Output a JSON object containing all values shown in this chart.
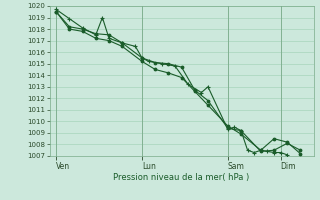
{
  "xlabel": "Pression niveau de la mer( hPa )",
  "ylim": [
    1007,
    1020
  ],
  "yticks": [
    1007,
    1008,
    1009,
    1010,
    1011,
    1012,
    1013,
    1014,
    1015,
    1016,
    1017,
    1018,
    1019,
    1020
  ],
  "xtick_labels": [
    "Ven",
    "Lun",
    "Sam",
    "Dim"
  ],
  "xtick_positions": [
    0,
    26,
    52,
    68
  ],
  "xlim": [
    -2,
    78
  ],
  "bg_color": "#cce8dc",
  "line_color": "#1a5c2a",
  "grid_color": "#9ecfb4",
  "series1_x": [
    0,
    4,
    8,
    12,
    14,
    16,
    20,
    24,
    26,
    28,
    32,
    36,
    40,
    44,
    46,
    52,
    54,
    56,
    58,
    60,
    62,
    64,
    66,
    68,
    70
  ],
  "series1_y": [
    1019.7,
    1018.9,
    1018.1,
    1017.5,
    1019.0,
    1017.2,
    1016.8,
    1016.5,
    1015.5,
    1015.2,
    1015.0,
    1014.8,
    1013.2,
    1012.5,
    1013.0,
    1009.3,
    1009.5,
    1009.2,
    1007.5,
    1007.3,
    1007.5,
    1007.4,
    1007.3,
    1007.3,
    1007.1
  ],
  "series2_x": [
    0,
    4,
    8,
    12,
    16,
    20,
    26,
    30,
    34,
    38,
    42,
    46,
    52,
    56,
    62,
    66,
    70,
    74
  ],
  "series2_y": [
    1019.5,
    1018.2,
    1018.0,
    1017.6,
    1017.5,
    1016.8,
    1015.5,
    1015.1,
    1015.0,
    1014.7,
    1012.7,
    1011.8,
    1009.4,
    1009.2,
    1007.4,
    1007.5,
    1008.1,
    1007.5
  ],
  "series3_x": [
    0,
    4,
    8,
    12,
    16,
    20,
    26,
    30,
    34,
    38,
    42,
    46,
    52,
    56,
    62,
    66,
    70,
    74
  ],
  "series3_y": [
    1019.5,
    1018.0,
    1017.8,
    1017.2,
    1017.0,
    1016.5,
    1015.2,
    1014.5,
    1014.2,
    1013.8,
    1012.6,
    1011.4,
    1009.6,
    1008.9,
    1007.5,
    1008.5,
    1008.2,
    1007.2
  ]
}
